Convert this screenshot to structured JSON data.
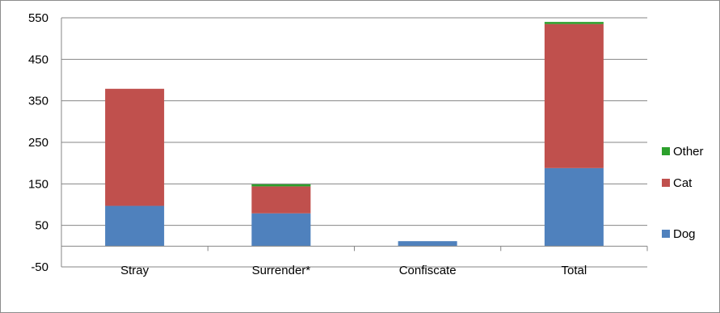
{
  "chart_data": {
    "type": "bar",
    "stacked": true,
    "categories": [
      "Stray",
      "Surrender*",
      "Confiscate",
      "Total"
    ],
    "series": [
      {
        "name": "Dog",
        "color": "#4f81bd",
        "values": [
          97,
          79,
          12,
          188
        ]
      },
      {
        "name": "Cat",
        "color": "#c0504d",
        "values": [
          282,
          65,
          0,
          347
        ]
      },
      {
        "name": "Other",
        "color": "#2ca02c",
        "values": [
          0,
          5,
          0,
          5
        ]
      }
    ],
    "ylim": [
      -50,
      550
    ],
    "yticks": [
      "550",
      "450",
      "350",
      "250",
      "150",
      "50",
      "-50"
    ],
    "ytick_values": [
      550,
      450,
      350,
      250,
      150,
      50,
      -50
    ],
    "grid": true,
    "legend_position": "right"
  }
}
